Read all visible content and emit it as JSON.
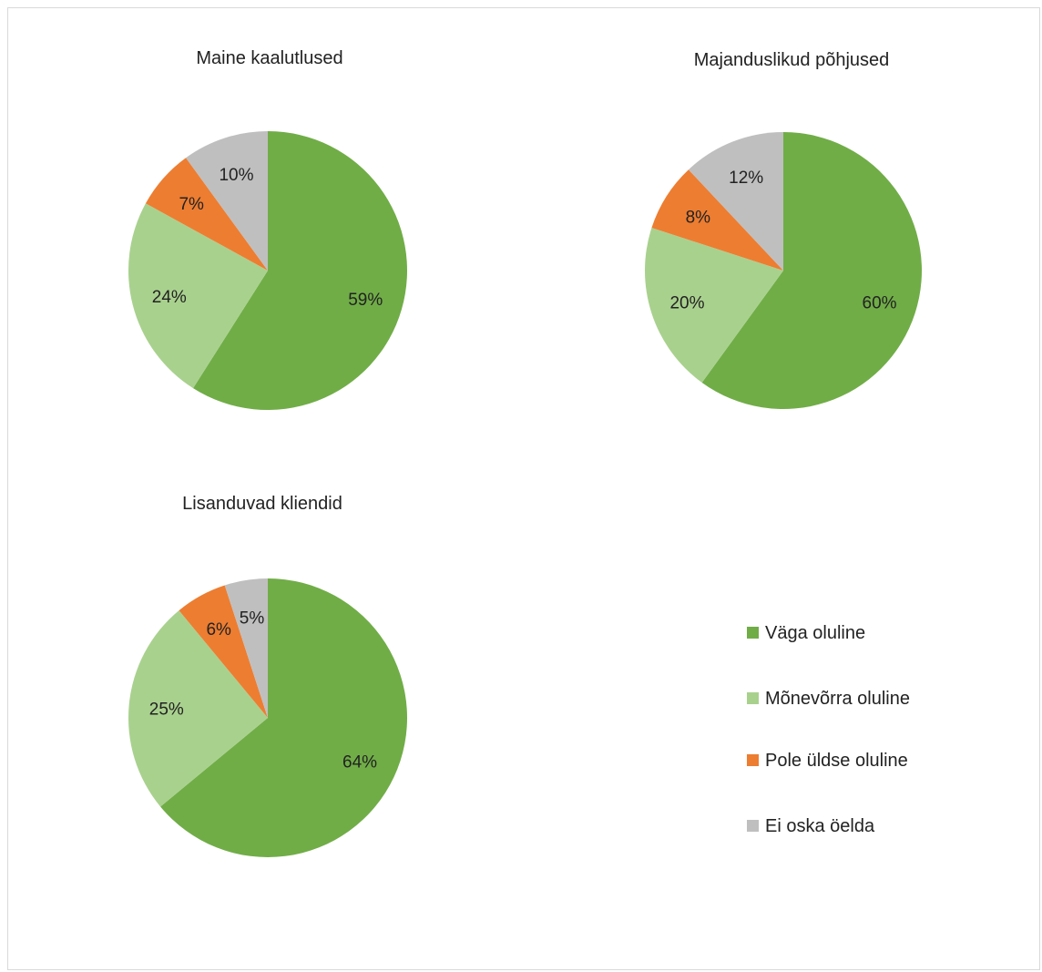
{
  "chart_data": [
    {
      "type": "pie",
      "title": "Maine kaalutlused",
      "categories": [
        "Väga oluline",
        "Mõnevõrra oluline",
        "Pole üldse oluline",
        "Ei oska öelda"
      ],
      "values": [
        59,
        24,
        7,
        10
      ],
      "labels": [
        "59%",
        "24%",
        "7%",
        "10%"
      ]
    },
    {
      "type": "pie",
      "title": "Majanduslikud põhjused",
      "categories": [
        "Väga oluline",
        "Mõnevõrra oluline",
        "Pole üldse oluline",
        "Ei oska öelda"
      ],
      "values": [
        60,
        20,
        8,
        12
      ],
      "labels": [
        "60%",
        "20%",
        "8%",
        "12%"
      ]
    },
    {
      "type": "pie",
      "title": "Lisanduvad kliendid",
      "categories": [
        "Väga oluline",
        "Mõnevõrra oluline",
        "Pole üldse oluline",
        "Ei oska öelda"
      ],
      "values": [
        64,
        25,
        6,
        5
      ],
      "labels": [
        "64%",
        "25%",
        "6%",
        "5%"
      ]
    }
  ],
  "legend": {
    "placement": "bottom-right",
    "items": [
      {
        "label": "Väga oluline",
        "color": "#70ad47"
      },
      {
        "label": "Mõnevõrra oluline",
        "color": "#a9d18e"
      },
      {
        "label": "Pole üldse oluline",
        "color": "#ed7d31"
      },
      {
        "label": "Ei oska öelda",
        "color": "#bfbfbf"
      }
    ]
  },
  "colors": [
    "#70ad47",
    "#a9d18e",
    "#ed7d31",
    "#bfbfbf"
  ]
}
